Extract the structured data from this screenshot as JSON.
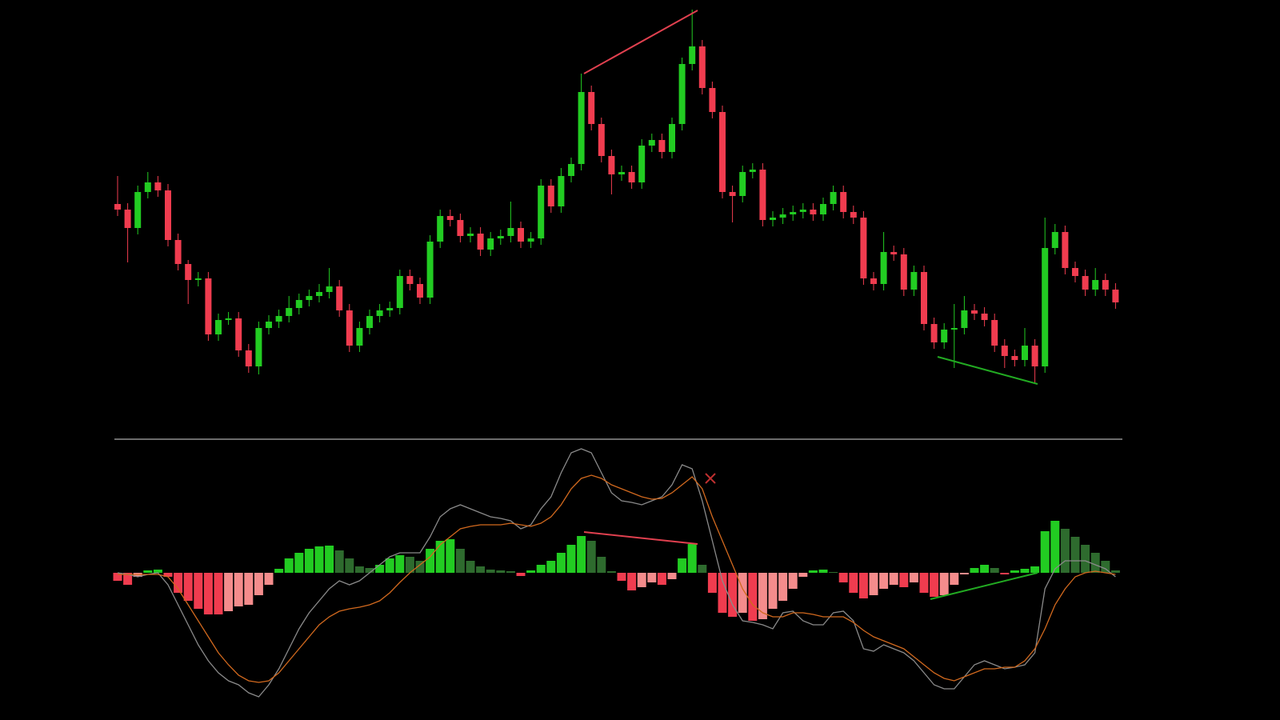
{
  "chart_data": [
    {
      "type": "candlestick",
      "up_color": "#22cc22",
      "down_color": "#f03c4f",
      "ylim": [
        0,
        500
      ],
      "open": [
        245,
        238,
        215,
        260,
        272,
        262,
        200,
        170,
        150,
        152,
        82,
        100,
        102,
        62,
        42,
        90,
        98,
        105,
        115,
        125,
        130,
        135,
        142,
        112,
        68,
        90,
        105,
        112,
        115,
        155,
        145,
        128,
        198,
        230,
        225,
        205,
        208,
        188,
        202,
        205,
        215,
        198,
        202,
        268,
        242,
        280,
        295,
        385,
        345,
        305,
        282,
        285,
        272,
        318,
        325,
        310,
        345,
        420,
        442,
        390,
        360,
        260,
        255,
        285,
        288,
        225,
        228,
        232,
        235,
        238,
        232,
        245,
        260,
        235,
        228,
        152,
        145,
        185,
        182,
        138,
        160,
        95,
        72,
        88,
        90,
        112,
        108,
        100,
        68,
        55,
        50,
        68,
        42,
        190,
        210,
        165,
        155,
        138,
        150,
        138
      ],
      "high": [
        280,
        246,
        268,
        285,
        280,
        270,
        208,
        175,
        160,
        160,
        108,
        110,
        110,
        70,
        98,
        106,
        113,
        130,
        133,
        138,
        145,
        165,
        150,
        120,
        98,
        113,
        120,
        123,
        163,
        163,
        153,
        206,
        238,
        238,
        233,
        216,
        216,
        210,
        213,
        248,
        223,
        210,
        276,
        276,
        290,
        303,
        408,
        393,
        353,
        313,
        293,
        293,
        326,
        333,
        333,
        353,
        428,
        488,
        450,
        398,
        368,
        268,
        293,
        296,
        296,
        236,
        240,
        243,
        246,
        246,
        253,
        268,
        268,
        243,
        236,
        160,
        210,
        193,
        190,
        168,
        168,
        103,
        96,
        120,
        130,
        120,
        116,
        108,
        76,
        63,
        90,
        76,
        228,
        220,
        218,
        173,
        163,
        165,
        158,
        146
      ],
      "low": [
        230,
        172,
        207,
        252,
        254,
        192,
        162,
        120,
        142,
        74,
        74,
        94,
        54,
        34,
        32,
        82,
        90,
        97,
        107,
        117,
        122,
        127,
        104,
        60,
        60,
        82,
        97,
        104,
        107,
        137,
        120,
        120,
        190,
        217,
        197,
        197,
        180,
        180,
        194,
        197,
        190,
        190,
        194,
        234,
        234,
        272,
        287,
        337,
        297,
        257,
        274,
        264,
        264,
        310,
        302,
        302,
        337,
        412,
        382,
        352,
        252,
        222,
        247,
        277,
        217,
        217,
        220,
        224,
        227,
        224,
        224,
        237,
        227,
        220,
        144,
        137,
        137,
        174,
        130,
        130,
        87,
        64,
        64,
        40,
        82,
        100,
        92,
        60,
        40,
        42,
        42,
        20,
        34,
        182,
        157,
        147,
        130,
        130,
        130,
        114
      ],
      "close": [
        238,
        215,
        260,
        272,
        262,
        200,
        170,
        150,
        152,
        82,
        100,
        102,
        62,
        42,
        90,
        98,
        105,
        115,
        125,
        130,
        135,
        142,
        112,
        68,
        90,
        105,
        112,
        115,
        155,
        145,
        128,
        198,
        230,
        225,
        205,
        208,
        188,
        202,
        205,
        215,
        198,
        202,
        268,
        242,
        280,
        295,
        385,
        345,
        305,
        282,
        285,
        272,
        318,
        325,
        310,
        345,
        420,
        442,
        390,
        360,
        260,
        255,
        285,
        288,
        225,
        228,
        232,
        235,
        238,
        232,
        245,
        260,
        235,
        228,
        152,
        145,
        185,
        182,
        138,
        160,
        95,
        72,
        88,
        90,
        112,
        108,
        100,
        68,
        55,
        50,
        68,
        42,
        190,
        210,
        165,
        155,
        138,
        150,
        138,
        122
      ]
    },
    {
      "type": "macd",
      "ylim": [
        -165,
        165
      ],
      "histogram": {
        "values": [
          -10,
          -15,
          -5,
          3,
          4,
          -5,
          -25,
          -35,
          -45,
          -52,
          -52,
          -48,
          -42,
          -40,
          -28,
          -15,
          5,
          18,
          25,
          30,
          33,
          34,
          28,
          18,
          8,
          6,
          10,
          18,
          22,
          20,
          15,
          30,
          40,
          42,
          30,
          15,
          8,
          4,
          3,
          2,
          -4,
          3,
          10,
          15,
          25,
          35,
          46,
          40,
          20,
          2,
          -10,
          -22,
          -18,
          -12,
          -15,
          -8,
          18,
          36,
          10,
          -25,
          -50,
          -55,
          -50,
          -60,
          -58,
          -45,
          -35,
          -20,
          -5,
          3,
          4,
          1,
          -12,
          -25,
          -32,
          -28,
          -20,
          -15,
          -18,
          -12,
          -25,
          -30,
          -28,
          -15,
          -2,
          6,
          10,
          6,
          -2,
          3,
          5,
          8,
          52,
          65,
          55,
          45,
          35,
          25,
          15,
          3
        ],
        "colors": {
          "rising_positive": "#22cc22",
          "falling_positive": "#2e6b2e",
          "falling_negative": "#f03c4f",
          "rising_negative": "#f48c8c"
        }
      },
      "series": [
        {
          "name": "MACD",
          "color": "#8a8a8a",
          "values": [
            0,
            -2,
            -5,
            -2,
            0,
            -15,
            -40,
            -65,
            -90,
            -110,
            -125,
            -135,
            -140,
            -150,
            -155,
            -140,
            -120,
            -95,
            -70,
            -50,
            -35,
            -20,
            -10,
            -15,
            -10,
            0,
            10,
            20,
            25,
            25,
            25,
            45,
            70,
            80,
            85,
            80,
            75,
            70,
            68,
            65,
            55,
            60,
            80,
            95,
            125,
            150,
            155,
            150,
            125,
            100,
            90,
            88,
            85,
            90,
            95,
            110,
            135,
            130,
            90,
            40,
            -10,
            -40,
            -60,
            -62,
            -65,
            -70,
            -50,
            -48,
            -60,
            -65,
            -65,
            -50,
            -48,
            -60,
            -95,
            -98,
            -90,
            -95,
            -100,
            -110,
            -125,
            -140,
            -145,
            -145,
            -130,
            -115,
            -110,
            -115,
            -120,
            -118,
            -115,
            -100,
            -20,
            5,
            15,
            15,
            15,
            10,
            5,
            -5
          ]
        },
        {
          "name": "Signal",
          "color": "#d2691e",
          "values": [
            -2,
            -2,
            -2,
            -2,
            -2,
            -5,
            -20,
            -40,
            -60,
            -80,
            -100,
            -115,
            -128,
            -135,
            -137,
            -135,
            -125,
            -110,
            -95,
            -80,
            -65,
            -55,
            -48,
            -45,
            -43,
            -40,
            -35,
            -25,
            -12,
            0,
            10,
            20,
            35,
            45,
            55,
            58,
            60,
            60,
            60,
            62,
            60,
            58,
            62,
            70,
            85,
            105,
            118,
            122,
            118,
            110,
            105,
            100,
            95,
            92,
            93,
            100,
            110,
            120,
            105,
            70,
            40,
            10,
            -20,
            -40,
            -50,
            -55,
            -55,
            -50,
            -50,
            -52,
            -55,
            -55,
            -55,
            -62,
            -72,
            -80,
            -85,
            -90,
            -95,
            -105,
            -115,
            -125,
            -132,
            -135,
            -130,
            -125,
            -120,
            -120,
            -118,
            -118,
            -110,
            -95,
            -70,
            -40,
            -20,
            -5,
            0,
            2,
            0,
            -2
          ]
        }
      ]
    }
  ]
}
